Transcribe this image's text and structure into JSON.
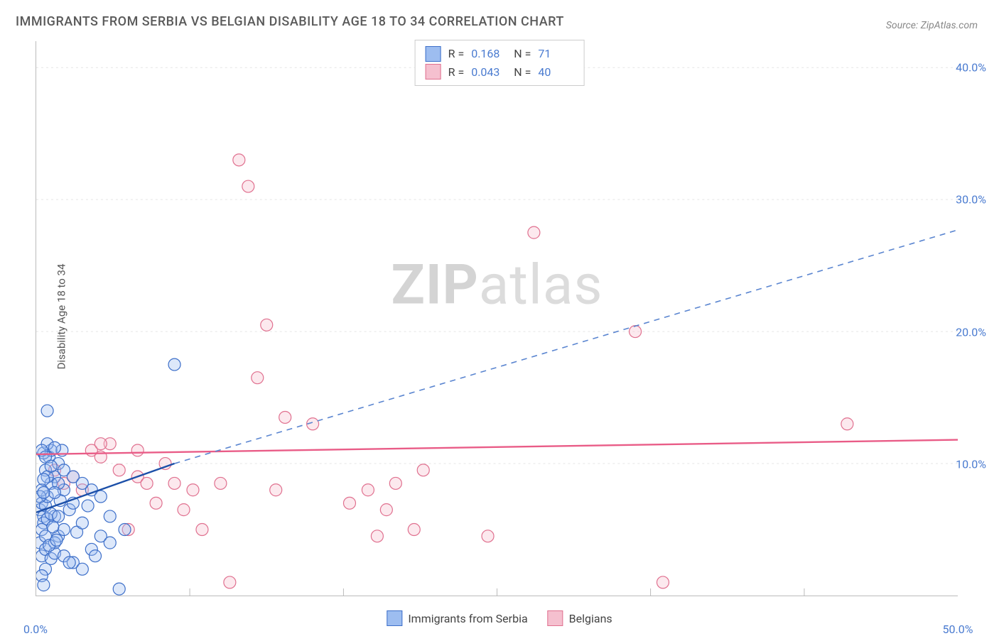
{
  "title": "IMMIGRANTS FROM SERBIA VS BELGIAN DISABILITY AGE 18 TO 34 CORRELATION CHART",
  "source": "Source: ZipAtlas.com",
  "watermark_bold": "ZIP",
  "watermark_rest": "atlas",
  "y_axis_label": "Disability Age 18 to 34",
  "chart": {
    "type": "scatter",
    "xlim": [
      0,
      50
    ],
    "ylim": [
      0,
      42
    ],
    "x_ticks": [
      {
        "v": 0,
        "l": "0.0%"
      },
      {
        "v": 50,
        "l": "50.0%"
      }
    ],
    "y_ticks": [
      {
        "v": 10,
        "l": "10.0%"
      },
      {
        "v": 20,
        "l": "20.0%"
      },
      {
        "v": 30,
        "l": "30.0%"
      },
      {
        "v": 40,
        "l": "40.0%"
      }
    ],
    "x_grid_minor": [
      8.33,
      16.67,
      25,
      33.33,
      41.67
    ],
    "y_grid": [
      10,
      20,
      30,
      40
    ],
    "background_color": "#ffffff",
    "grid_color": "#e5e5e5",
    "grid_dash": "3,4",
    "axis_color": "#bbbbbb",
    "tick_color": "#4a7bd0",
    "marker_radius": 8.5,
    "marker_stroke_width": 1.2,
    "marker_fill_opacity": 0.35,
    "series": {
      "serbia": {
        "label": "Immigrants from Serbia",
        "color_stroke": "#3d6fc9",
        "color_fill": "#9dbdf0",
        "R": "0.168",
        "N": "71",
        "trend": {
          "x1": 0,
          "y1": 6.3,
          "x2": 7.5,
          "y2": 10.0,
          "color": "#1b4fa8",
          "width": 2.4,
          "dash": "none"
        },
        "trend_ext": {
          "x1": 7.5,
          "y1": 10.0,
          "x2": 50,
          "y2": 27.7,
          "color": "#5a85d0",
          "width": 1.6,
          "dash": "8,7"
        },
        "points": [
          [
            0.2,
            6.5
          ],
          [
            0.3,
            7.0
          ],
          [
            0.4,
            6.0
          ],
          [
            0.5,
            6.8
          ],
          [
            0.4,
            5.5
          ],
          [
            0.6,
            7.5
          ],
          [
            0.3,
            8.0
          ],
          [
            0.5,
            9.5
          ],
          [
            0.7,
            10.5
          ],
          [
            0.8,
            11.0
          ],
          [
            0.4,
            10.8
          ],
          [
            0.6,
            11.5
          ],
          [
            0.2,
            4.0
          ],
          [
            0.3,
            3.0
          ],
          [
            0.5,
            3.5
          ],
          [
            0.8,
            2.8
          ],
          [
            1.0,
            3.2
          ],
          [
            1.2,
            4.5
          ],
          [
            1.5,
            5.0
          ],
          [
            1.0,
            6.0
          ],
          [
            1.3,
            7.2
          ],
          [
            1.5,
            8.0
          ],
          [
            1.8,
            6.5
          ],
          [
            2.0,
            7.0
          ],
          [
            2.2,
            4.8
          ],
          [
            2.5,
            5.5
          ],
          [
            1.0,
            9.0
          ],
          [
            1.2,
            10.0
          ],
          [
            1.4,
            11.0
          ],
          [
            0.3,
            11.0
          ],
          [
            0.5,
            10.5
          ],
          [
            0.6,
            14.0
          ],
          [
            0.8,
            8.5
          ],
          [
            1.0,
            4.0
          ],
          [
            1.5,
            3.0
          ],
          [
            2.0,
            2.5
          ],
          [
            2.8,
            6.8
          ],
          [
            3.0,
            8.0
          ],
          [
            3.5,
            4.5
          ],
          [
            3.0,
            3.5
          ],
          [
            3.5,
            7.5
          ],
          [
            4.0,
            6.0
          ],
          [
            4.0,
            4.0
          ],
          [
            4.5,
            0.5
          ],
          [
            4.8,
            5.0
          ],
          [
            3.2,
            3.0
          ],
          [
            2.5,
            2.0
          ],
          [
            1.8,
            2.5
          ],
          [
            0.5,
            2.0
          ],
          [
            0.3,
            1.5
          ],
          [
            0.4,
            0.8
          ],
          [
            0.6,
            9.0
          ],
          [
            0.8,
            9.8
          ],
          [
            1.0,
            11.2
          ],
          [
            1.2,
            8.5
          ],
          [
            1.5,
            9.5
          ],
          [
            0.2,
            7.5
          ],
          [
            0.4,
            8.8
          ],
          [
            0.6,
            5.8
          ],
          [
            0.8,
            6.2
          ],
          [
            1.0,
            7.8
          ],
          [
            1.2,
            6.0
          ],
          [
            0.3,
            5.0
          ],
          [
            0.5,
            4.5
          ],
          [
            0.7,
            3.8
          ],
          [
            0.9,
            5.2
          ],
          [
            1.1,
            4.2
          ],
          [
            2.0,
            9.0
          ],
          [
            2.5,
            8.5
          ],
          [
            7.5,
            17.5
          ],
          [
            0.4,
            7.8
          ]
        ]
      },
      "belgians": {
        "label": "Belgians",
        "color_stroke": "#e0708f",
        "color_fill": "#f5c0cf",
        "R": "0.043",
        "N": "40",
        "trend": {
          "x1": 0,
          "y1": 10.7,
          "x2": 50,
          "y2": 11.8,
          "color": "#e95c87",
          "width": 2.4,
          "dash": "none"
        },
        "points": [
          [
            1.0,
            9.5
          ],
          [
            1.5,
            8.5
          ],
          [
            2.0,
            9.0
          ],
          [
            2.5,
            8.0
          ],
          [
            3.0,
            11.0
          ],
          [
            3.5,
            10.5
          ],
          [
            4.0,
            11.5
          ],
          [
            5.0,
            5.0
          ],
          [
            5.5,
            9.0
          ],
          [
            6.0,
            8.5
          ],
          [
            6.5,
            7.0
          ],
          [
            7.0,
            10.0
          ],
          [
            7.5,
            8.5
          ],
          [
            8.0,
            6.5
          ],
          [
            8.5,
            8.0
          ],
          [
            9.0,
            5.0
          ],
          [
            10.0,
            8.5
          ],
          [
            10.5,
            1.0
          ],
          [
            11.0,
            33.0
          ],
          [
            11.5,
            31.0
          ],
          [
            12.0,
            16.5
          ],
          [
            12.5,
            20.5
          ],
          [
            13.0,
            8.0
          ],
          [
            13.5,
            13.5
          ],
          [
            15.0,
            13.0
          ],
          [
            17.0,
            7.0
          ],
          [
            18.0,
            8.0
          ],
          [
            18.5,
            4.5
          ],
          [
            19.0,
            6.5
          ],
          [
            19.5,
            8.5
          ],
          [
            20.5,
            5.0
          ],
          [
            21.0,
            9.5
          ],
          [
            24.5,
            4.5
          ],
          [
            27.0,
            27.5
          ],
          [
            32.5,
            20.0
          ],
          [
            34.0,
            1.0
          ],
          [
            44.0,
            13.0
          ],
          [
            4.5,
            9.5
          ],
          [
            5.5,
            11.0
          ],
          [
            3.5,
            11.5
          ]
        ]
      }
    }
  }
}
